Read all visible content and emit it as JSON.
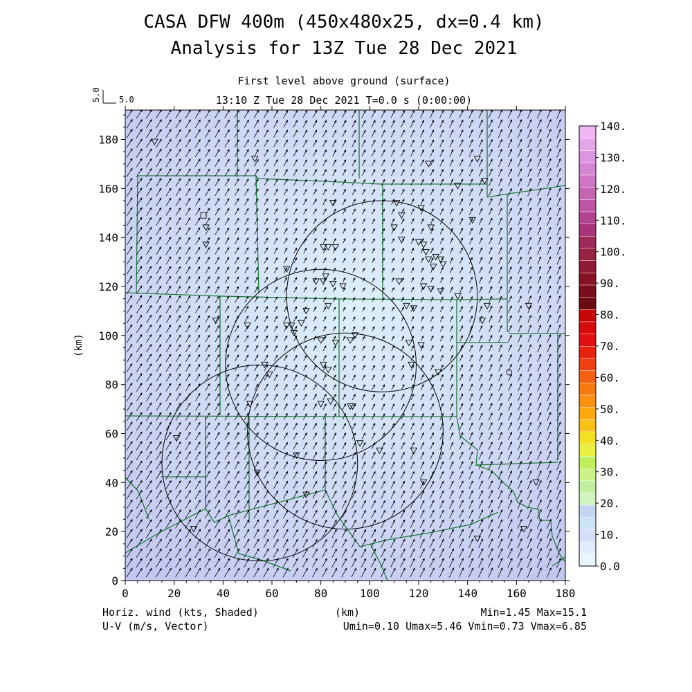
{
  "title_line1": "CASA DFW 400m (450x480x25, dx=0.4 km)",
  "title_line2": "Analysis for 13Z Tue 28 Dec 2021",
  "subtitle_level": "First level above ground (surface)",
  "subtitle_time": "13:10 Z Tue 28 Dec 2021    T=0.0 s (0:00:00)",
  "ref_vector": {
    "value_label_rotated": "5.0",
    "value_label": "5.0"
  },
  "bottom_left_line1": "Horiz. wind (kts, Shaded)",
  "bottom_left_line2": "U-V (m/s, Vector)",
  "bottom_center": "(km)",
  "bottom_right_line1": "Min=1.45  Max=15.1",
  "bottom_right_line2": "Umin=0.10  Umax=5.46  Vmin=0.73  Vmax=6.85",
  "colors": {
    "field_light": "#dcf0fa",
    "field_mid": "#cfd9f5",
    "field_dark": "#c2c6f0",
    "county_lines": "#1f7a3a",
    "vectors": "#000000"
  },
  "chart_data": {
    "type": "heatmap",
    "xlabel": "",
    "ylabel": "(km)",
    "xlim": [
      0,
      180
    ],
    "ylim": [
      0,
      192
    ],
    "xticks": [
      "0",
      "20",
      "40",
      "60",
      "80",
      "100",
      "120",
      "140",
      "160",
      "180"
    ],
    "yticks": [
      "0",
      "20",
      "40",
      "60",
      "80",
      "100",
      "120",
      "140",
      "160",
      "180"
    ],
    "field_min": 1.45,
    "field_max": 15.1,
    "wind_direction": "from southwest",
    "colorbar": {
      "labels": [
        "0.0",
        "10.",
        "20.",
        "30.",
        "40.",
        "50.",
        "60.",
        "70.",
        "80.",
        "90.",
        "100.",
        "110.",
        "120.",
        "130.",
        "140."
      ],
      "colors": [
        "#e6f6fc",
        "#dfedfa",
        "#d6ddf6",
        "#cce4f3",
        "#c3d8f0",
        "#d2f5c0",
        "#c0f0a0",
        "#cdf28a",
        "#bff05a",
        "#e8f040",
        "#f2e020",
        "#fbc018",
        "#fba810",
        "#f99010",
        "#f67a10",
        "#f36010",
        "#ef4010",
        "#ea2010",
        "#e01010",
        "#d60c0c",
        "#c80808",
        "#6e0a14",
        "#7a0e1c",
        "#861224",
        "#8f1a34",
        "#982244",
        "#9d2a58",
        "#a8347a",
        "#b24490",
        "#bb56a4",
        "#c466b4",
        "#cc76c4",
        "#d486d4",
        "#dc96e0",
        "#e4a6ea",
        "#eeb6f2"
      ]
    },
    "radar_rings": [
      {
        "center": [
          105,
          116
        ],
        "radius": 39
      },
      {
        "center": [
          80,
          88
        ],
        "radius": 39
      },
      {
        "center": [
          90,
          61
        ],
        "radius": 40
      },
      {
        "center": [
          55,
          48
        ],
        "radius": 40
      }
    ],
    "stations_triangle": [
      [
        12,
        179
      ],
      [
        53,
        172
      ],
      [
        124,
        170
      ],
      [
        144,
        172
      ],
      [
        147,
        163
      ],
      [
        136,
        161
      ],
      [
        85,
        154
      ],
      [
        111,
        154
      ],
      [
        113,
        149
      ],
      [
        121,
        152
      ],
      [
        110,
        144
      ],
      [
        125,
        144
      ],
      [
        142,
        147
      ],
      [
        33,
        144
      ],
      [
        33,
        137
      ],
      [
        81,
        136
      ],
      [
        83,
        136
      ],
      [
        86,
        136
      ],
      [
        113,
        139
      ],
      [
        120,
        138
      ],
      [
        122,
        137
      ],
      [
        123,
        134
      ],
      [
        124,
        131
      ],
      [
        127,
        132
      ],
      [
        129,
        131
      ],
      [
        130,
        129
      ],
      [
        126,
        128
      ],
      [
        66,
        127
      ],
      [
        78,
        122
      ],
      [
        81,
        122
      ],
      [
        82,
        124
      ],
      [
        85,
        121
      ],
      [
        89,
        120
      ],
      [
        112,
        122
      ],
      [
        122,
        120
      ],
      [
        125,
        119
      ],
      [
        136,
        116
      ],
      [
        129,
        118
      ],
      [
        83,
        112
      ],
      [
        74,
        110
      ],
      [
        115,
        112
      ],
      [
        118,
        111
      ],
      [
        148,
        112
      ],
      [
        165,
        112
      ],
      [
        146,
        106
      ],
      [
        37,
        106
      ],
      [
        50,
        104
      ],
      [
        66,
        104
      ],
      [
        68,
        104
      ],
      [
        69,
        101
      ],
      [
        72,
        105
      ],
      [
        80,
        98
      ],
      [
        86,
        97
      ],
      [
        92,
        98
      ],
      [
        94,
        100
      ],
      [
        116,
        97
      ],
      [
        121,
        96
      ],
      [
        117,
        88
      ],
      [
        81,
        88
      ],
      [
        83,
        86
      ],
      [
        57,
        88
      ],
      [
        59,
        84
      ],
      [
        128,
        85
      ],
      [
        51,
        72
      ],
      [
        80,
        72
      ],
      [
        84,
        73
      ],
      [
        92,
        71
      ],
      [
        93,
        71
      ],
      [
        96,
        56
      ],
      [
        104,
        53
      ],
      [
        118,
        53
      ],
      [
        70,
        51
      ],
      [
        21,
        58
      ],
      [
        54,
        44
      ],
      [
        122,
        40
      ],
      [
        74,
        35
      ],
      [
        168,
        40
      ],
      [
        144,
        17
      ],
      [
        163,
        21
      ],
      [
        28,
        21
      ]
    ],
    "stations_circle": [
      [
        157,
        85
      ]
    ],
    "stations_square": [
      [
        32,
        149
      ]
    ]
  }
}
